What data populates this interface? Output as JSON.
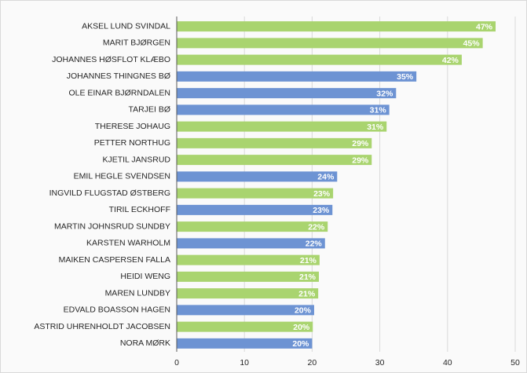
{
  "chart_data": {
    "type": "bar",
    "orientation": "horizontal",
    "categories": [
      "AKSEL LUND SVINDAL",
      "MARIT BJØRGEN",
      "JOHANNES HØSFLOT KLÆBO",
      "JOHANNES THINGNES BØ",
      "OLE EINAR BJØRNDALEN",
      "TARJEI BØ",
      "THERESE JOHAUG",
      "PETTER NORTHUG",
      "KJETIL JANSRUD",
      "EMIL HEGLE SVENDSEN",
      "INGVILD FLUGSTAD ØSTBERG",
      "TIRIL ECKHOFF",
      "MARTIN JOHNSRUD SUNDBY",
      "KARSTEN WARHOLM",
      "MAIKEN CASPERSEN FALLA",
      "HEIDI WENG",
      "MAREN LUNDBY",
      "EDVALD BOASSON HAGEN",
      "ASTRID UHRENHOLDT JACOBSEN",
      "NORA MØRK"
    ],
    "values": [
      47.1,
      45.2,
      42.1,
      35.4,
      32.4,
      31.4,
      31,
      28.8,
      28.8,
      23.7,
      23.1,
      23,
      22.3,
      21.9,
      21.1,
      21,
      20.9,
      20.3,
      20.1,
      20
    ],
    "value_labels": [
      "47%",
      "45%",
      "42%",
      "35%",
      "32%",
      "31%",
      "31%",
      "29%",
      "29%",
      "24%",
      "23%",
      "23%",
      "22%",
      "22%",
      "21%",
      "21%",
      "21%",
      "20%",
      "20%",
      "20%"
    ],
    "colors": [
      "#a9d46f",
      "#a9d46f",
      "#a9d46f",
      "#6d93d3",
      "#6d93d3",
      "#6d93d3",
      "#a9d46f",
      "#a9d46f",
      "#a9d46f",
      "#6d93d3",
      "#a9d46f",
      "#6d93d3",
      "#a9d46f",
      "#6d93d3",
      "#a9d46f",
      "#a9d46f",
      "#a9d46f",
      "#6d93d3",
      "#a9d46f",
      "#6d93d3"
    ],
    "xlim": [
      0,
      50
    ],
    "xticks": [
      0,
      10,
      20,
      30,
      40,
      50
    ],
    "grid": true
  }
}
